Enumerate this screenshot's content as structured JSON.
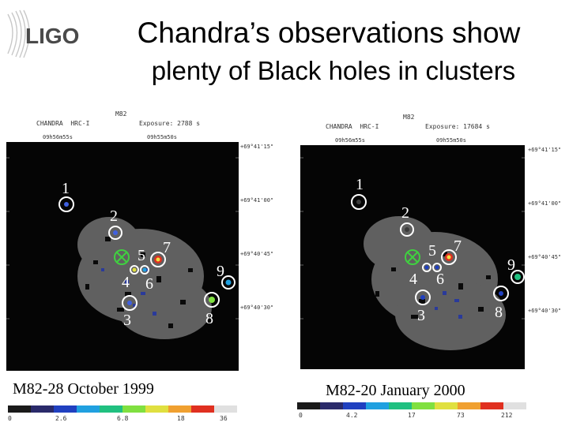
{
  "logo": {
    "text": "LIGO"
  },
  "title": {
    "line1": "Chandra’s observations show",
    "line2": "plenty of Black holes in clusters"
  },
  "panels": [
    {
      "object": "M82",
      "instrument": "CHANDRA  HRC-I",
      "exposure": "Exposure: 2788 s",
      "ra_left": "09h56m55s",
      "ra_right": "09h55m50s",
      "dec": [
        "+69°41'15\"",
        "+69°41'00\"",
        "+69°40'45\"",
        "+69°40'30\""
      ],
      "caption": "M82-28 October 1999",
      "colorbar_ticks": [
        "0",
        "2.6",
        "6.8",
        "18",
        "36"
      ],
      "sources": [
        "1",
        "2",
        "3",
        "4",
        "5",
        "6",
        "7",
        "8",
        "9"
      ]
    },
    {
      "object": "M82",
      "instrument": "CHANDRA  HRC-I",
      "exposure": "Exposure: 17684 s",
      "ra_left": "09h56m55s",
      "ra_right": "09h55m50s",
      "dec": [
        "+69°41'15\"",
        "+69°41'00\"",
        "+69°40'45\"",
        "+69°40'30\""
      ],
      "caption": "M82-20 January 2000",
      "colorbar_ticks": [
        "0",
        "4.2",
        "17",
        "73",
        "212"
      ],
      "sources": [
        "1",
        "2",
        "3",
        "4",
        "5",
        "6",
        "7",
        "8",
        "9"
      ]
    }
  ],
  "colorbar_colors": [
    "#1a1a1a",
    "#2a2a6a",
    "#2040c0",
    "#20a0e0",
    "#20c080",
    "#80e040",
    "#e0e040",
    "#f0a030",
    "#e03020",
    "#e0e0e0"
  ]
}
